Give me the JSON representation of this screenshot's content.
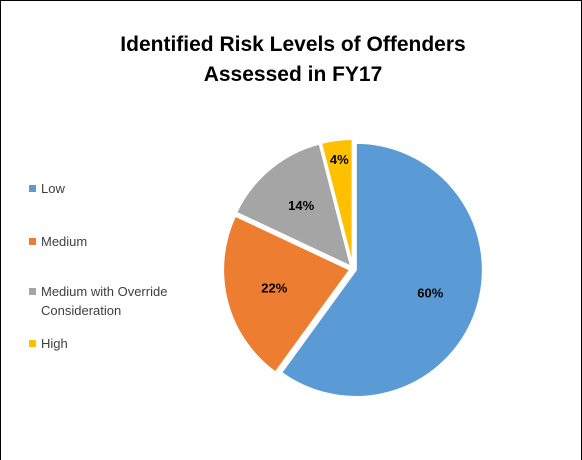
{
  "chart_data": {
    "type": "pie",
    "title": [
      "Identified Risk Levels of Offenders",
      "Assessed in FY17"
    ],
    "categories": [
      "Low",
      "Medium",
      "Medium with Override Consideration",
      "High"
    ],
    "values": [
      60,
      22,
      14,
      4
    ],
    "value_labels": [
      "60%",
      "22%",
      "14%",
      "4%"
    ],
    "colors": [
      "#5b9bd5",
      "#ed7d31",
      "#a5a5a5",
      "#ffc000"
    ],
    "legend": "left"
  }
}
